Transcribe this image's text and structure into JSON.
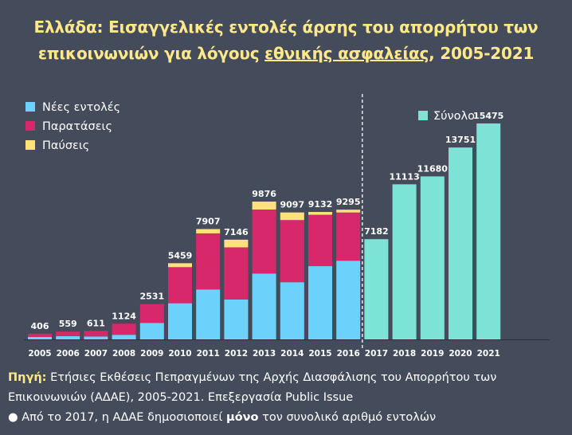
{
  "title": {
    "line1": "Ελλάδα: Εισαγγελικές εντολές άρσης του απορρήτου των",
    "line2_prefix": "επικοινωνιών για λόγους ",
    "line2_underlined": "εθνικής ασφαλείας",
    "line2_suffix": ", 2005-2021"
  },
  "source": {
    "label": "Πηγή:",
    "line1": " Ετήσιες Εκθέσεις Πεπραγμένων της Αρχής Διασφάλισης του Απορρήτου των",
    "line2": "Επικοινωνιών (ΑΔΑΕ), 2005-2021. Επεξεργασία Public Issue",
    "note_prefix": "● Από το 2017, η ΑΔΑΕ δημοσιοποιεί ",
    "note_emphasis": "μόνο",
    "note_suffix": " τον συνολικό αριθμό εντολών"
  },
  "colors": {
    "new": "#6dd2fb",
    "extensions": "#d8286c",
    "stops": "#ffe27a",
    "total": "#7ee3d7",
    "title": "#ffe88a",
    "background": "#444c5c"
  },
  "chart_data": {
    "type": "bar",
    "stacked": true,
    "categories": [
      "2005",
      "2006",
      "2007",
      "2008",
      "2009",
      "2010",
      "2011",
      "2012",
      "2013",
      "2014",
      "2015",
      "2016",
      "2017",
      "2018",
      "2019",
      "2020",
      "2021"
    ],
    "series": [
      {
        "name": "Νέες εντολές",
        "key": "new",
        "values": [
          180,
          230,
          210,
          330,
          1180,
          2590,
          3580,
          2860,
          4720,
          4100,
          5250,
          5640,
          null,
          null,
          null,
          null,
          null
        ]
      },
      {
        "name": "Παρατάσεις",
        "key": "extensions",
        "values": [
          226,
          329,
          401,
          794,
          1351,
          2589,
          4017,
          3736,
          4586,
          4453,
          3682,
          3455,
          null,
          null,
          null,
          null,
          null
        ]
      },
      {
        "name": "Παύσεις",
        "key": "stops",
        "values": [
          0,
          0,
          0,
          0,
          0,
          280,
          310,
          550,
          570,
          544,
          200,
          200,
          null,
          null,
          null,
          null,
          null
        ]
      },
      {
        "name": "Σύνολο",
        "key": "total",
        "values": [
          null,
          null,
          null,
          null,
          null,
          null,
          null,
          null,
          null,
          null,
          null,
          null,
          7182,
          11113,
          11680,
          13751,
          15475
        ]
      }
    ],
    "totals": [
      406,
      559,
      611,
      1124,
      2531,
      5459,
      7907,
      7146,
      9876,
      9097,
      9132,
      9295,
      7182,
      11113,
      11680,
      13751,
      15475
    ],
    "legend": [
      "Νέες εντολές",
      "Παρατάσεις",
      "Παύσεις"
    ],
    "legend_total": "Σύνολο",
    "ylim": [
      0,
      16500
    ],
    "divider_after": "2016"
  }
}
